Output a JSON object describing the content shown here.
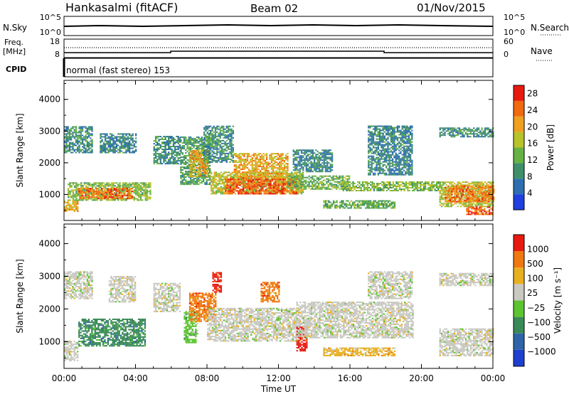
{
  "header": {
    "station": "Hankasalmi (fitACF)",
    "beam": "Beam 02",
    "date": "01/Nov/2015"
  },
  "noise_panel": {
    "left_label": "N.Sky",
    "right_label": "N.Search",
    "ticks_left": [
      "10^5",
      "10^0"
    ],
    "ticks_right": [
      "10^5",
      "10^0"
    ]
  },
  "freq_panel": {
    "left_label_1": "Freq.",
    "left_label_2": "[MHz]",
    "right_label": "Nave",
    "ticks_left": [
      "18",
      "8"
    ],
    "ticks_right": [
      "60",
      "0"
    ]
  },
  "cpid": {
    "label": "CPID",
    "text": "normal (fast stereo) 153"
  },
  "chart_data": [
    {
      "type": "heatmap",
      "title": "",
      "xlabel": "Time UT",
      "ylabel": "Slant Range [km]",
      "x_ticks": [
        "00:00",
        "04:00",
        "08:00",
        "12:00",
        "16:00",
        "20:00",
        "00:00"
      ],
      "xlim_hours": [
        0,
        24
      ],
      "y_ticks": [
        1000,
        2000,
        3000,
        4000
      ],
      "ylim": [
        180,
        4600
      ],
      "colorbar": {
        "label": "Power [dB]",
        "ticks": [
          4,
          8,
          12,
          16,
          20,
          24,
          28
        ],
        "range": [
          0,
          30
        ],
        "colors": [
          "#1f3fe0",
          "#2d6fb0",
          "#3f8f6a",
          "#66b244",
          "#b8c22a",
          "#f0a020",
          "#f06a10",
          "#e81a10"
        ]
      },
      "regions": [
        {
          "t0": 0.0,
          "t1": 1.6,
          "r0": 2300,
          "r1": 3150,
          "level": 9
        },
        {
          "t0": 0.0,
          "t1": 0.8,
          "r0": 450,
          "r1": 800,
          "level": 20
        },
        {
          "t0": 0.2,
          "t1": 4.8,
          "r0": 800,
          "r1": 1350,
          "level": 14
        },
        {
          "t0": 0.8,
          "t1": 3.8,
          "r0": 850,
          "r1": 1200,
          "level": 24
        },
        {
          "t0": 2.0,
          "t1": 4.0,
          "r0": 2300,
          "r1": 2900,
          "level": 8
        },
        {
          "t0": 5.0,
          "t1": 6.5,
          "r0": 1950,
          "r1": 2850,
          "level": 9
        },
        {
          "t0": 6.5,
          "t1": 8.2,
          "r0": 1300,
          "r1": 2800,
          "level": 11
        },
        {
          "t0": 7.0,
          "t1": 8.0,
          "r0": 1550,
          "r1": 2400,
          "level": 20
        },
        {
          "t0": 7.8,
          "t1": 9.5,
          "r0": 2000,
          "r1": 3150,
          "level": 9
        },
        {
          "t0": 8.2,
          "t1": 13.4,
          "r0": 1000,
          "r1": 1700,
          "level": 17
        },
        {
          "t0": 9.0,
          "t1": 13.0,
          "r0": 1000,
          "r1": 1500,
          "level": 25
        },
        {
          "t0": 9.5,
          "t1": 12.5,
          "r0": 1500,
          "r1": 2300,
          "level": 20
        },
        {
          "t0": 12.5,
          "t1": 16.0,
          "r0": 1150,
          "r1": 1600,
          "level": 13
        },
        {
          "t0": 12.8,
          "t1": 15.0,
          "r0": 1700,
          "r1": 2400,
          "level": 8
        },
        {
          "t0": 14.5,
          "t1": 18.5,
          "r0": 550,
          "r1": 800,
          "level": 12
        },
        {
          "t0": 15.5,
          "t1": 21.0,
          "r0": 1100,
          "r1": 1400,
          "level": 14
        },
        {
          "t0": 17.0,
          "t1": 19.5,
          "r0": 1600,
          "r1": 3150,
          "level": 8
        },
        {
          "t0": 21.0,
          "t1": 24.0,
          "r0": 2800,
          "r1": 3100,
          "level": 9
        },
        {
          "t0": 21.0,
          "t1": 24.0,
          "r0": 600,
          "r1": 1400,
          "level": 16
        },
        {
          "t0": 21.3,
          "t1": 24.0,
          "r0": 750,
          "r1": 1250,
          "level": 23
        },
        {
          "t0": 22.5,
          "t1": 24.0,
          "r0": 350,
          "r1": 600,
          "level": 25
        }
      ]
    },
    {
      "type": "heatmap",
      "title": "",
      "xlabel": "Time UT",
      "ylabel": "Slant Range [km]",
      "x_ticks": [
        "00:00",
        "04:00",
        "08:00",
        "12:00",
        "16:00",
        "20:00",
        "00:00"
      ],
      "xlim_hours": [
        0,
        24
      ],
      "y_ticks": [
        1000,
        2000,
        3000,
        4000
      ],
      "ylim": [
        180,
        4600
      ],
      "colorbar": {
        "label": "Velocity [m s⁻¹]",
        "ticks": [
          "1000",
          "500",
          "100",
          "25",
          "−25",
          "−100",
          "−500",
          "−1000"
        ],
        "colors": [
          "#1f3fd0",
          "#2f64a8",
          "#3a8a58",
          "#5cc430",
          "#c9c9c2",
          "#e8b020",
          "#f07810",
          "#e81a10"
        ]
      },
      "regions": [
        {
          "t0": 0.0,
          "t1": 1.6,
          "r0": 2300,
          "r1": 3150,
          "cls": 4
        },
        {
          "t0": 0.0,
          "t1": 0.8,
          "r0": 400,
          "r1": 1000,
          "cls": 4
        },
        {
          "t0": 0.8,
          "t1": 4.5,
          "r0": 850,
          "r1": 1700,
          "cls": 2
        },
        {
          "t0": 2.5,
          "t1": 4.0,
          "r0": 2200,
          "r1": 3000,
          "cls": 4
        },
        {
          "t0": 5.0,
          "t1": 6.5,
          "r0": 1900,
          "r1": 2800,
          "cls": 4
        },
        {
          "t0": 6.7,
          "t1": 7.5,
          "r0": 950,
          "r1": 1900,
          "cls": 3
        },
        {
          "t0": 7.0,
          "t1": 8.5,
          "r0": 1600,
          "r1": 2500,
          "cls": 6
        },
        {
          "t0": 8.3,
          "t1": 8.8,
          "r0": 2500,
          "r1": 3100,
          "cls": 7
        },
        {
          "t0": 8.0,
          "t1": 13.0,
          "r0": 1000,
          "r1": 2000,
          "cls": 4
        },
        {
          "t0": 11.0,
          "t1": 12.0,
          "r0": 2200,
          "r1": 2800,
          "cls": 6
        },
        {
          "t0": 13.0,
          "t1": 13.6,
          "r0": 700,
          "r1": 1450,
          "cls": 7
        },
        {
          "t0": 13.0,
          "t1": 19.5,
          "r0": 1100,
          "r1": 2200,
          "cls": 4
        },
        {
          "t0": 14.5,
          "t1": 18.5,
          "r0": 550,
          "r1": 800,
          "cls": 5
        },
        {
          "t0": 17.0,
          "t1": 19.5,
          "r0": 2300,
          "r1": 3150,
          "cls": 4
        },
        {
          "t0": 21.0,
          "t1": 24.0,
          "r0": 2700,
          "r1": 3100,
          "cls": 4
        },
        {
          "t0": 21.0,
          "t1": 24.0,
          "r0": 550,
          "r1": 1400,
          "cls": 4
        }
      ]
    }
  ]
}
